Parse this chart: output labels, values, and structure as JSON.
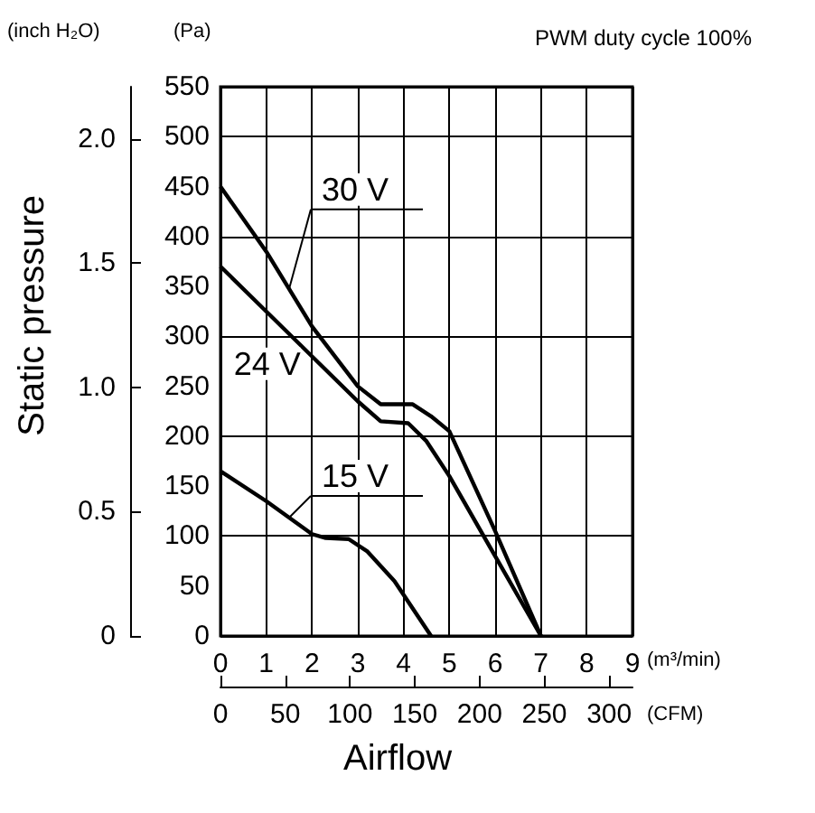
{
  "chart_data": {
    "type": "line",
    "title": "PWM duty cycle 100%",
    "xlabel": "(m³/min)",
    "x2label": "(CFM)",
    "ylabel": "(Pa)",
    "y2label": "(inch H₂O)",
    "annotations": [
      "Static pressure",
      "Airflow"
    ],
    "x": [
      0,
      1,
      2,
      3,
      3.5,
      4.2,
      4.6,
      5,
      6,
      7
    ],
    "series": [
      {
        "name": "30 V",
        "color": "#000000",
        "values": [
          450,
          385,
          310,
          250,
          232,
          232,
          220,
          205,
          105,
          0
        ]
      },
      {
        "name": "24 V",
        "color": "#000000",
        "x": [
          0,
          1,
          2,
          3,
          3.5,
          4.1,
          4.5,
          5,
          6,
          7
        ],
        "values": [
          370,
          325,
          280,
          235,
          215,
          213,
          195,
          160,
          80,
          0
        ]
      },
      {
        "name": "15 V",
        "color": "#000000",
        "x": [
          0,
          1,
          2,
          2.3,
          2.8,
          3.2,
          3.8,
          4.6
        ],
        "values": [
          165,
          135,
          102,
          98,
          97,
          85,
          55,
          0
        ]
      }
    ],
    "xlim": [
      0,
      9
    ],
    "xticks": [
      0,
      1,
      2,
      3,
      4,
      5,
      6,
      7,
      8,
      9
    ],
    "x2lim": [
      0,
      318
    ],
    "x2ticks": [
      0,
      50,
      100,
      150,
      200,
      250,
      300
    ],
    "ylim": [
      0,
      550
    ],
    "yticks": [
      0,
      50,
      100,
      150,
      200,
      250,
      300,
      350,
      400,
      450,
      500,
      550
    ],
    "y2lim": [
      0,
      2.21
    ],
    "y2ticks": [
      {
        "value": 0,
        "label": "0"
      },
      {
        "value": 0.5,
        "label": "0.5"
      },
      {
        "value": 1,
        "label": "1.0"
      },
      {
        "value": 1.5,
        "label": "1.5"
      },
      {
        "value": 2,
        "label": "2.0"
      }
    ],
    "grid": true,
    "legend": false,
    "marker": "none",
    "line_style": "solid"
  }
}
